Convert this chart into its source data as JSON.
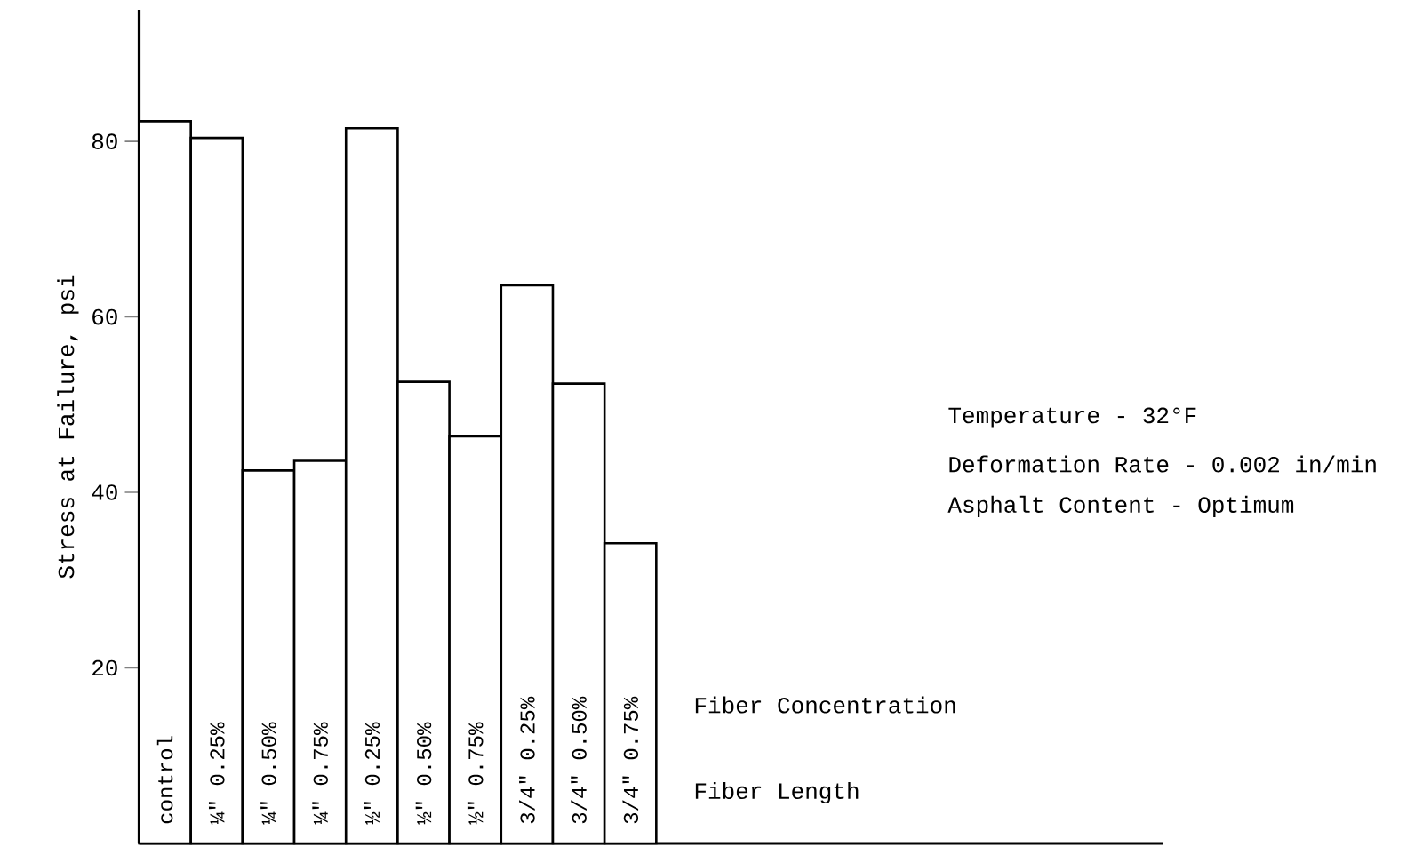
{
  "chart_data": {
    "type": "bar",
    "ylabel": "Stress at Failure, psi",
    "categories": [
      "control",
      "¼\" 0.25%",
      "¼\" 0.50%",
      "¼\" 0.75%",
      "½\" 0.25%",
      "½\" 0.50%",
      "½\" 0.75%",
      "3/4\" 0.25%",
      "3/4\" 0.50%",
      "3/4\" 0.75%"
    ],
    "values": [
      82.3,
      80.4,
      42.5,
      43.6,
      81.5,
      52.6,
      46.4,
      63.6,
      52.4,
      34.2
    ],
    "color": "#ffffff",
    "ylim": [
      0,
      95
    ],
    "yticks": [
      20,
      40,
      60,
      80
    ],
    "annotations": [
      "Fiber Concentration",
      "Fiber Length",
      "Temperature - 32°F",
      "Deformation Rate - 0.002 in/min",
      "Asphalt Content - Optimum"
    ]
  }
}
